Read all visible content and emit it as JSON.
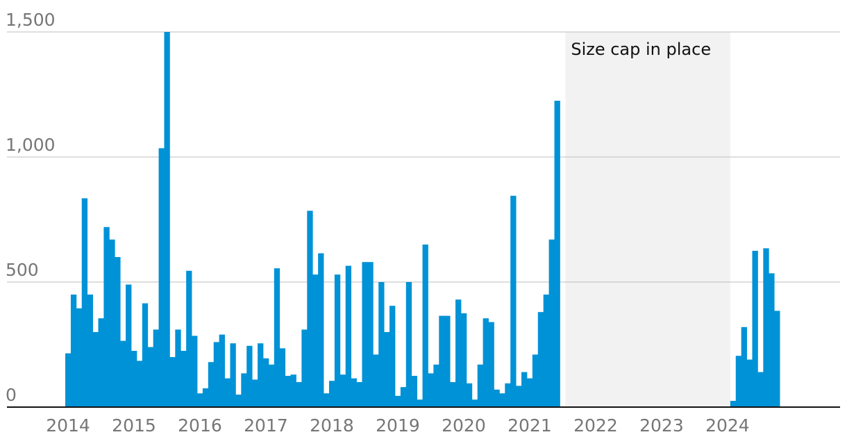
{
  "chart_data": {
    "type": "bar",
    "title": "",
    "xlabel": "",
    "ylabel": "",
    "ylim": [
      0,
      1500
    ],
    "xlim": [
      "2014-01",
      "2025-12"
    ],
    "y_ticks": [
      {
        "value": 0,
        "label": "0"
      },
      {
        "value": 500,
        "label": "500"
      },
      {
        "value": 1000,
        "label": "1,000"
      },
      {
        "value": 1500,
        "label": "1,500"
      }
    ],
    "x_ticks": [
      "2014",
      "2015",
      "2016",
      "2017",
      "2018",
      "2019",
      "2020",
      "2021",
      "2022",
      "2023",
      "2024"
    ],
    "grid": true,
    "bar_color": "#0092d6",
    "shade_color": "#f2f2f2",
    "annotation": {
      "label": "Size cap in place",
      "start": "2021-08",
      "end": "2024-02"
    },
    "series": [
      {
        "x": [
          "2014-01",
          "2014-02",
          "2014-03",
          "2014-04",
          "2014-05",
          "2014-06",
          "2014-07",
          "2014-08",
          "2014-09",
          "2014-10",
          "2014-11",
          "2014-12",
          "2015-01",
          "2015-02",
          "2015-03",
          "2015-04",
          "2015-05",
          "2015-06",
          "2015-07",
          "2015-08",
          "2015-09",
          "2015-10",
          "2015-11",
          "2015-12",
          "2016-01",
          "2016-02",
          "2016-03",
          "2016-04",
          "2016-05",
          "2016-06",
          "2016-07",
          "2016-08",
          "2016-09",
          "2016-10",
          "2016-11",
          "2016-12",
          "2017-01",
          "2017-02",
          "2017-03",
          "2017-04",
          "2017-05",
          "2017-06",
          "2017-07",
          "2017-08",
          "2017-09",
          "2017-10",
          "2017-11",
          "2017-12",
          "2018-01",
          "2018-02",
          "2018-03",
          "2018-04",
          "2018-05",
          "2018-06",
          "2018-07",
          "2018-08",
          "2018-09",
          "2018-10",
          "2018-11",
          "2018-12",
          "2019-01",
          "2019-02",
          "2019-03",
          "2019-04",
          "2019-05",
          "2019-06",
          "2019-07",
          "2019-08",
          "2019-09",
          "2019-10",
          "2019-11",
          "2019-12",
          "2020-01",
          "2020-02",
          "2020-03",
          "2020-04",
          "2020-05",
          "2020-06",
          "2020-07",
          "2020-08",
          "2020-09",
          "2020-10",
          "2020-11",
          "2020-12",
          "2021-01",
          "2021-02",
          "2021-03",
          "2021-04",
          "2021-05",
          "2021-06",
          "2021-07",
          "2024-02",
          "2024-03",
          "2024-04",
          "2024-05",
          "2024-06",
          "2024-07",
          "2024-08",
          "2024-09",
          "2024-10",
          "2024-11"
        ],
        "values": [
          215,
          450,
          395,
          835,
          450,
          300,
          355,
          720,
          670,
          600,
          265,
          490,
          225,
          185,
          415,
          240,
          310,
          1035,
          1500,
          200,
          310,
          225,
          545,
          285,
          55,
          75,
          180,
          260,
          290,
          115,
          255,
          50,
          135,
          245,
          110,
          255,
          195,
          170,
          555,
          235,
          125,
          130,
          100,
          310,
          785,
          530,
          615,
          55,
          105,
          530,
          130,
          565,
          115,
          100,
          580,
          580,
          210,
          500,
          300,
          405,
          45,
          80,
          500,
          125,
          30,
          650,
          135,
          170,
          365,
          365,
          100,
          430,
          375,
          95,
          30,
          170,
          355,
          340,
          70,
          55,
          95,
          845,
          85,
          140,
          115,
          210,
          380,
          450,
          670,
          1225,
          0,
          25,
          205,
          320,
          190,
          625,
          140,
          635,
          535,
          385,
          0
        ]
      }
    ]
  }
}
